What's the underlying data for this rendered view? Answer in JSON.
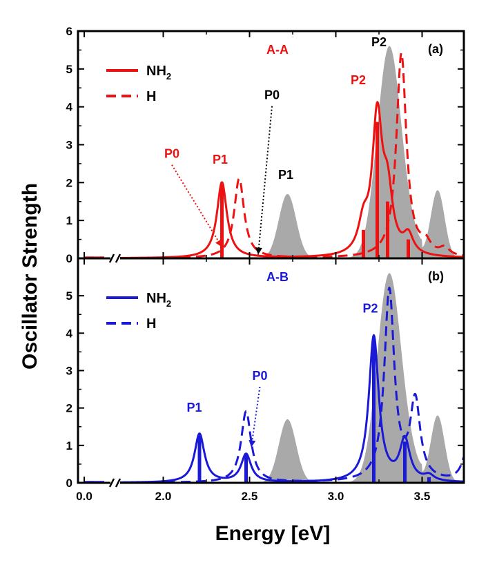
{
  "chart_data": {
    "type": "line",
    "xlabel": "Energy [eV]",
    "ylabel": "Oscillator Strength",
    "xlim": [
      0.0,
      3.75
    ],
    "axis_break_between": [
      0.15,
      0.25
    ],
    "xticks": [
      "0.0",
      "2.0",
      "2.5",
      "3.0",
      "3.5"
    ],
    "xtick_values": [
      0.0,
      2.0,
      2.5,
      3.0,
      3.5
    ],
    "panels": [
      {
        "id": "a",
        "panel_label": "(a)",
        "title": "A-A",
        "color": "#ee1111",
        "ylim": [
          0,
          6
        ],
        "yticks": [
          "0",
          "1",
          "2",
          "3",
          "4",
          "5",
          "6"
        ],
        "legend": [
          {
            "label": "NH",
            "sub": "2",
            "style": "solid"
          },
          {
            "label": "H",
            "sub": "",
            "style": "dashed"
          }
        ],
        "reference_gray": {
          "peaks": [
            [
              2.72,
              1.7,
              0.05
            ],
            [
              3.31,
              5.6,
              0.07
            ],
            [
              3.59,
              1.8,
              0.04
            ]
          ]
        },
        "series": [
          {
            "name": "NH2",
            "style": "solid",
            "broadening": 0.035,
            "baseline": 0.3,
            "sticks": [
              [
                2.34,
                2.0
              ],
              [
                3.16,
                0.75
              ],
              [
                3.24,
                3.6
              ],
              [
                3.3,
                1.5
              ],
              [
                3.42,
                0.5
              ]
            ]
          },
          {
            "name": "H",
            "style": "dashed",
            "broadening": 0.035,
            "baseline": 0.3,
            "sticks": [
              [
                2.44,
                2.1
              ],
              [
                3.38,
                5.4
              ],
              [
                3.52,
                0.3
              ],
              [
                3.63,
                0.2
              ]
            ]
          }
        ],
        "annotations": [
          {
            "text": "P0",
            "x": 2.05,
            "y": 2.65,
            "color": "#ee1111",
            "arrow_to": [
              2.34,
              0.3
            ]
          },
          {
            "text": "P1",
            "x": 2.33,
            "y": 2.5,
            "color": "#ee1111"
          },
          {
            "text": "P0",
            "x": 2.63,
            "y": 4.2,
            "color": "#000000",
            "arrow_to": [
              2.55,
              0.1
            ]
          },
          {
            "text": "P1",
            "x": 2.71,
            "y": 2.1,
            "color": "#000000"
          },
          {
            "text": "P2",
            "x": 3.13,
            "y": 4.6,
            "color": "#ee1111"
          },
          {
            "text": "P2",
            "x": 3.25,
            "y": 5.6,
            "color": "#000000"
          }
        ]
      },
      {
        "id": "b",
        "panel_label": "(b)",
        "title": "A-B",
        "color": "#1a1ad6",
        "ylim": [
          0,
          6
        ],
        "yticks": [
          "0",
          "1",
          "2",
          "3",
          "4",
          "5"
        ],
        "legend": [
          {
            "label": "NH",
            "sub": "2",
            "style": "solid"
          },
          {
            "label": "H",
            "sub": "",
            "style": "dashed"
          }
        ],
        "reference_gray": {
          "peaks": [
            [
              2.72,
              1.7,
              0.05
            ],
            [
              3.31,
              5.6,
              0.07
            ],
            [
              3.59,
              1.8,
              0.04
            ]
          ]
        },
        "series": [
          {
            "name": "NH2",
            "style": "solid",
            "broadening": 0.035,
            "baseline": 0.3,
            "sticks": [
              [
                2.21,
                1.3
              ],
              [
                2.48,
                0.75
              ],
              [
                3.22,
                3.9
              ],
              [
                3.4,
                1.1
              ],
              [
                3.54,
                0.15
              ]
            ]
          },
          {
            "name": "H",
            "style": "dashed",
            "broadening": 0.035,
            "baseline": 0.3,
            "sticks": [
              [
                2.48,
                1.9
              ],
              [
                3.31,
                5.1
              ],
              [
                3.46,
                2.1
              ],
              [
                3.76,
                0.8
              ]
            ]
          }
        ],
        "annotations": [
          {
            "text": "P1",
            "x": 2.18,
            "y": 1.9,
            "color": "#1a1ad6"
          },
          {
            "text": "P0",
            "x": 2.56,
            "y": 2.75,
            "color": "#1a1ad6",
            "arrow_to": [
              2.51,
              0.95
            ]
          },
          {
            "text": "P2",
            "x": 3.2,
            "y": 4.55,
            "color": "#1a1ad6"
          }
        ]
      }
    ]
  }
}
